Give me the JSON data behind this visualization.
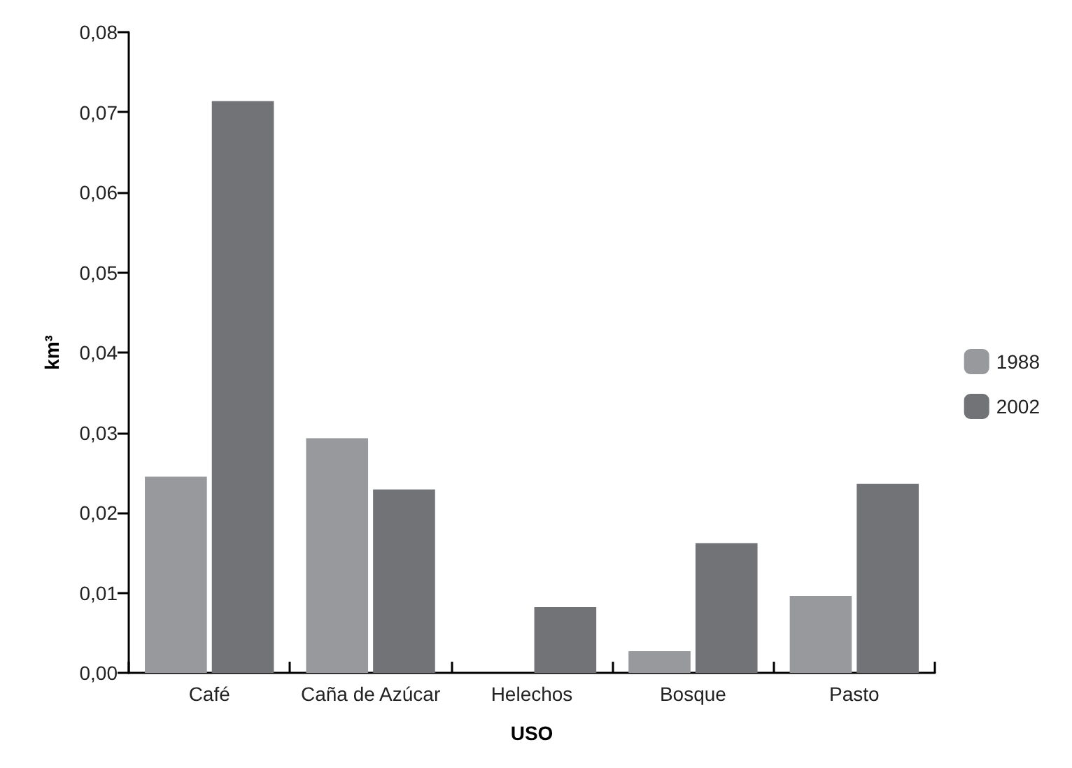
{
  "chart_data": {
    "type": "bar",
    "xlabel": "USO",
    "ylabel": "km³",
    "categories": [
      "Café",
      "Caña de Azúcar",
      "Helechos",
      "Bosque",
      "Pasto"
    ],
    "series": [
      {
        "name": "1988",
        "color": "#98999c",
        "values": [
          0.0245,
          0.0293,
          0,
          0.0027,
          0.0096
        ]
      },
      {
        "name": "2002",
        "color": "#727377",
        "values": [
          0.0714,
          0.0229,
          0.0082,
          0.0162,
          0.0236
        ]
      }
    ],
    "ylim": [
      0,
      0.08
    ],
    "yticks": [
      {
        "value": 0,
        "label": "0,00"
      },
      {
        "value": 0.01,
        "label": "0,01"
      },
      {
        "value": 0.02,
        "label": "0,02"
      },
      {
        "value": 0.03,
        "label": "0,03"
      },
      {
        "value": 0.04,
        "label": "0,04"
      },
      {
        "value": 0.05,
        "label": "0,05"
      },
      {
        "value": 0.06,
        "label": "0,06"
      },
      {
        "value": 0.07,
        "label": "0,07"
      },
      {
        "value": 0.08,
        "label": "0,08"
      }
    ],
    "grid": false,
    "legend": "right"
  }
}
